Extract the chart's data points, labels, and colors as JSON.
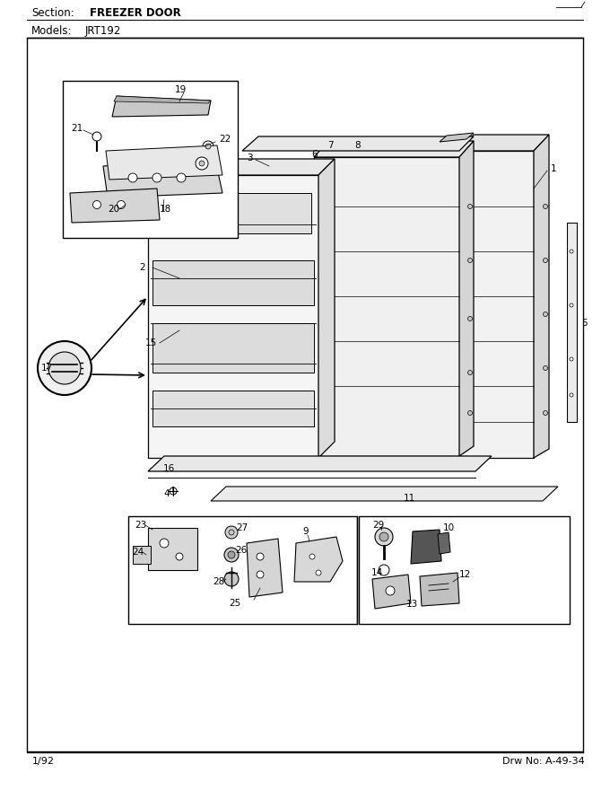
{
  "title_section_label": "Section:",
  "title_section_val": "FREEZER DOOR",
  "title_models_label": "Models:",
  "title_models_val": "JRT192",
  "footer_left": "1/92",
  "footer_right": "Drw No: A-49-34",
  "bg_color": "#ffffff",
  "gray_light": "#e0e0e0",
  "gray_mid": "#c8c8c8",
  "gray_dark": "#aaaaaa",
  "black": "#000000",
  "white": "#ffffff"
}
